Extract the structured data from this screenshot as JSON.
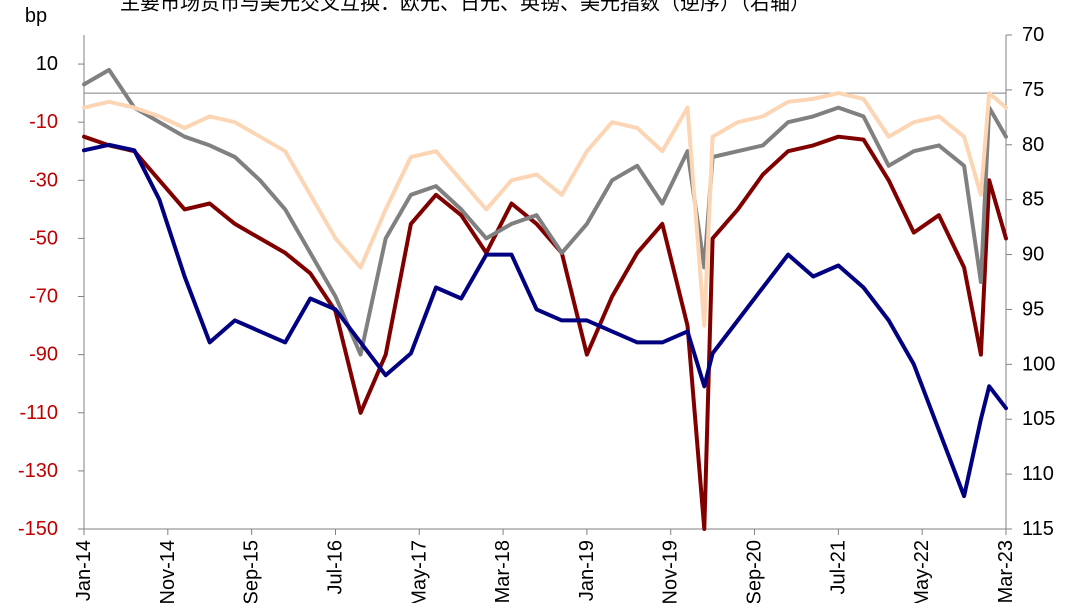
{
  "chart_data": {
    "type": "line",
    "title": "主要市场货币与美元交叉互换：欧元、日元、英镑、美元指数（逆序）（右轴）",
    "ylabel": "bp",
    "ylim": [
      -150,
      20
    ],
    "y_ticks": [
      10,
      -10,
      -30,
      -50,
      -70,
      -90,
      -110,
      -130,
      -150
    ],
    "y2lim": [
      115,
      70
    ],
    "y2_inverted": true,
    "y2_ticks": [
      70,
      75,
      80,
      85,
      90,
      95,
      100,
      105,
      110,
      115
    ],
    "x_tick_labels": [
      "Jan-14",
      "Nov-14",
      "Sep-15",
      "Jul-16",
      "May-17",
      "Mar-18",
      "Jan-19",
      "Nov-19",
      "Sep-20",
      "Jul-21",
      "May-22",
      "Mar-23"
    ],
    "x_range": [
      "2014-01",
      "2023-03"
    ],
    "grid": false,
    "series": [
      {
        "name": "欧元",
        "axis": "left",
        "color": "#800000",
        "x": [
          "2014-01",
          "2014-04",
          "2014-07",
          "2014-10",
          "2015-01",
          "2015-04",
          "2015-07",
          "2015-10",
          "2016-01",
          "2016-04",
          "2016-07",
          "2016-10",
          "2017-01",
          "2017-04",
          "2017-07",
          "2017-10",
          "2018-01",
          "2018-04",
          "2018-07",
          "2018-10",
          "2019-01",
          "2019-04",
          "2019-07",
          "2019-10",
          "2020-01",
          "2020-03",
          "2020-04",
          "2020-07",
          "2020-10",
          "2021-01",
          "2021-04",
          "2021-07",
          "2021-10",
          "2022-01",
          "2022-04",
          "2022-07",
          "2022-10",
          "2022-12",
          "2023-01",
          "2023-03"
        ],
        "values": [
          -15,
          -18,
          -20,
          -30,
          -40,
          -38,
          -45,
          -50,
          -55,
          -62,
          -75,
          -110,
          -90,
          -45,
          -35,
          -42,
          -55,
          -38,
          -45,
          -55,
          -90,
          -70,
          -55,
          -45,
          -80,
          -150,
          -50,
          -40,
          -28,
          -20,
          -18,
          -15,
          -16,
          -30,
          -48,
          -42,
          -60,
          -90,
          -30,
          -50
        ]
      },
      {
        "name": "日元",
        "axis": "left",
        "color": "#808080",
        "x": [
          "2014-01",
          "2014-04",
          "2014-07",
          "2014-10",
          "2015-01",
          "2015-04",
          "2015-07",
          "2015-10",
          "2016-01",
          "2016-04",
          "2016-07",
          "2016-10",
          "2017-01",
          "2017-04",
          "2017-07",
          "2017-10",
          "2018-01",
          "2018-04",
          "2018-07",
          "2018-10",
          "2019-01",
          "2019-04",
          "2019-07",
          "2019-10",
          "2020-01",
          "2020-03",
          "2020-04",
          "2020-07",
          "2020-10",
          "2021-01",
          "2021-04",
          "2021-07",
          "2021-10",
          "2022-01",
          "2022-04",
          "2022-07",
          "2022-10",
          "2022-12",
          "2023-01",
          "2023-03"
        ],
        "values": [
          3,
          8,
          -5,
          -10,
          -15,
          -18,
          -22,
          -30,
          -40,
          -55,
          -70,
          -90,
          -50,
          -35,
          -32,
          -40,
          -50,
          -45,
          -42,
          -55,
          -45,
          -30,
          -25,
          -38,
          -20,
          -60,
          -22,
          -20,
          -18,
          -10,
          -8,
          -5,
          -8,
          -25,
          -20,
          -18,
          -25,
          -65,
          -5,
          -15
        ]
      },
      {
        "name": "英镑",
        "axis": "left",
        "color": "#fcd5b4",
        "x": [
          "2014-01",
          "2014-04",
          "2014-07",
          "2014-10",
          "2015-01",
          "2015-04",
          "2015-07",
          "2015-10",
          "2016-01",
          "2016-04",
          "2016-07",
          "2016-10",
          "2017-01",
          "2017-04",
          "2017-07",
          "2017-10",
          "2018-01",
          "2018-04",
          "2018-07",
          "2018-10",
          "2019-01",
          "2019-04",
          "2019-07",
          "2019-10",
          "2020-01",
          "2020-03",
          "2020-04",
          "2020-07",
          "2020-10",
          "2021-01",
          "2021-04",
          "2021-07",
          "2021-10",
          "2022-01",
          "2022-04",
          "2022-07",
          "2022-10",
          "2022-12",
          "2023-01",
          "2023-03"
        ],
        "values": [
          -5,
          -3,
          -5,
          -8,
          -12,
          -8,
          -10,
          -15,
          -20,
          -35,
          -50,
          -60,
          -40,
          -22,
          -20,
          -30,
          -40,
          -30,
          -28,
          -35,
          -20,
          -10,
          -12,
          -20,
          -5,
          -80,
          -15,
          -10,
          -8,
          -3,
          -2,
          0,
          -2,
          -15,
          -10,
          -8,
          -15,
          -35,
          0,
          -5
        ]
      },
      {
        "name": "美元指数（逆序）",
        "axis": "right",
        "color": "#000080",
        "x": [
          "2014-01",
          "2014-04",
          "2014-07",
          "2014-10",
          "2015-01",
          "2015-04",
          "2015-07",
          "2015-10",
          "2016-01",
          "2016-04",
          "2016-07",
          "2016-10",
          "2017-01",
          "2017-04",
          "2017-07",
          "2017-10",
          "2018-01",
          "2018-04",
          "2018-07",
          "2018-10",
          "2019-01",
          "2019-04",
          "2019-07",
          "2019-10",
          "2020-01",
          "2020-03",
          "2020-04",
          "2020-07",
          "2020-10",
          "2021-01",
          "2021-04",
          "2021-07",
          "2021-10",
          "2022-01",
          "2022-04",
          "2022-07",
          "2022-10",
          "2022-12",
          "2023-01",
          "2023-03"
        ],
        "values": [
          80.5,
          80,
          80.5,
          85,
          92,
          98,
          96,
          97,
          98,
          94,
          95,
          98,
          101,
          99,
          93,
          94,
          90,
          90,
          95,
          96,
          96,
          97,
          98,
          98,
          97,
          102,
          99,
          96,
          93,
          90,
          92,
          91,
          93,
          96,
          100,
          106,
          112,
          105,
          102,
          104
        ]
      }
    ]
  }
}
